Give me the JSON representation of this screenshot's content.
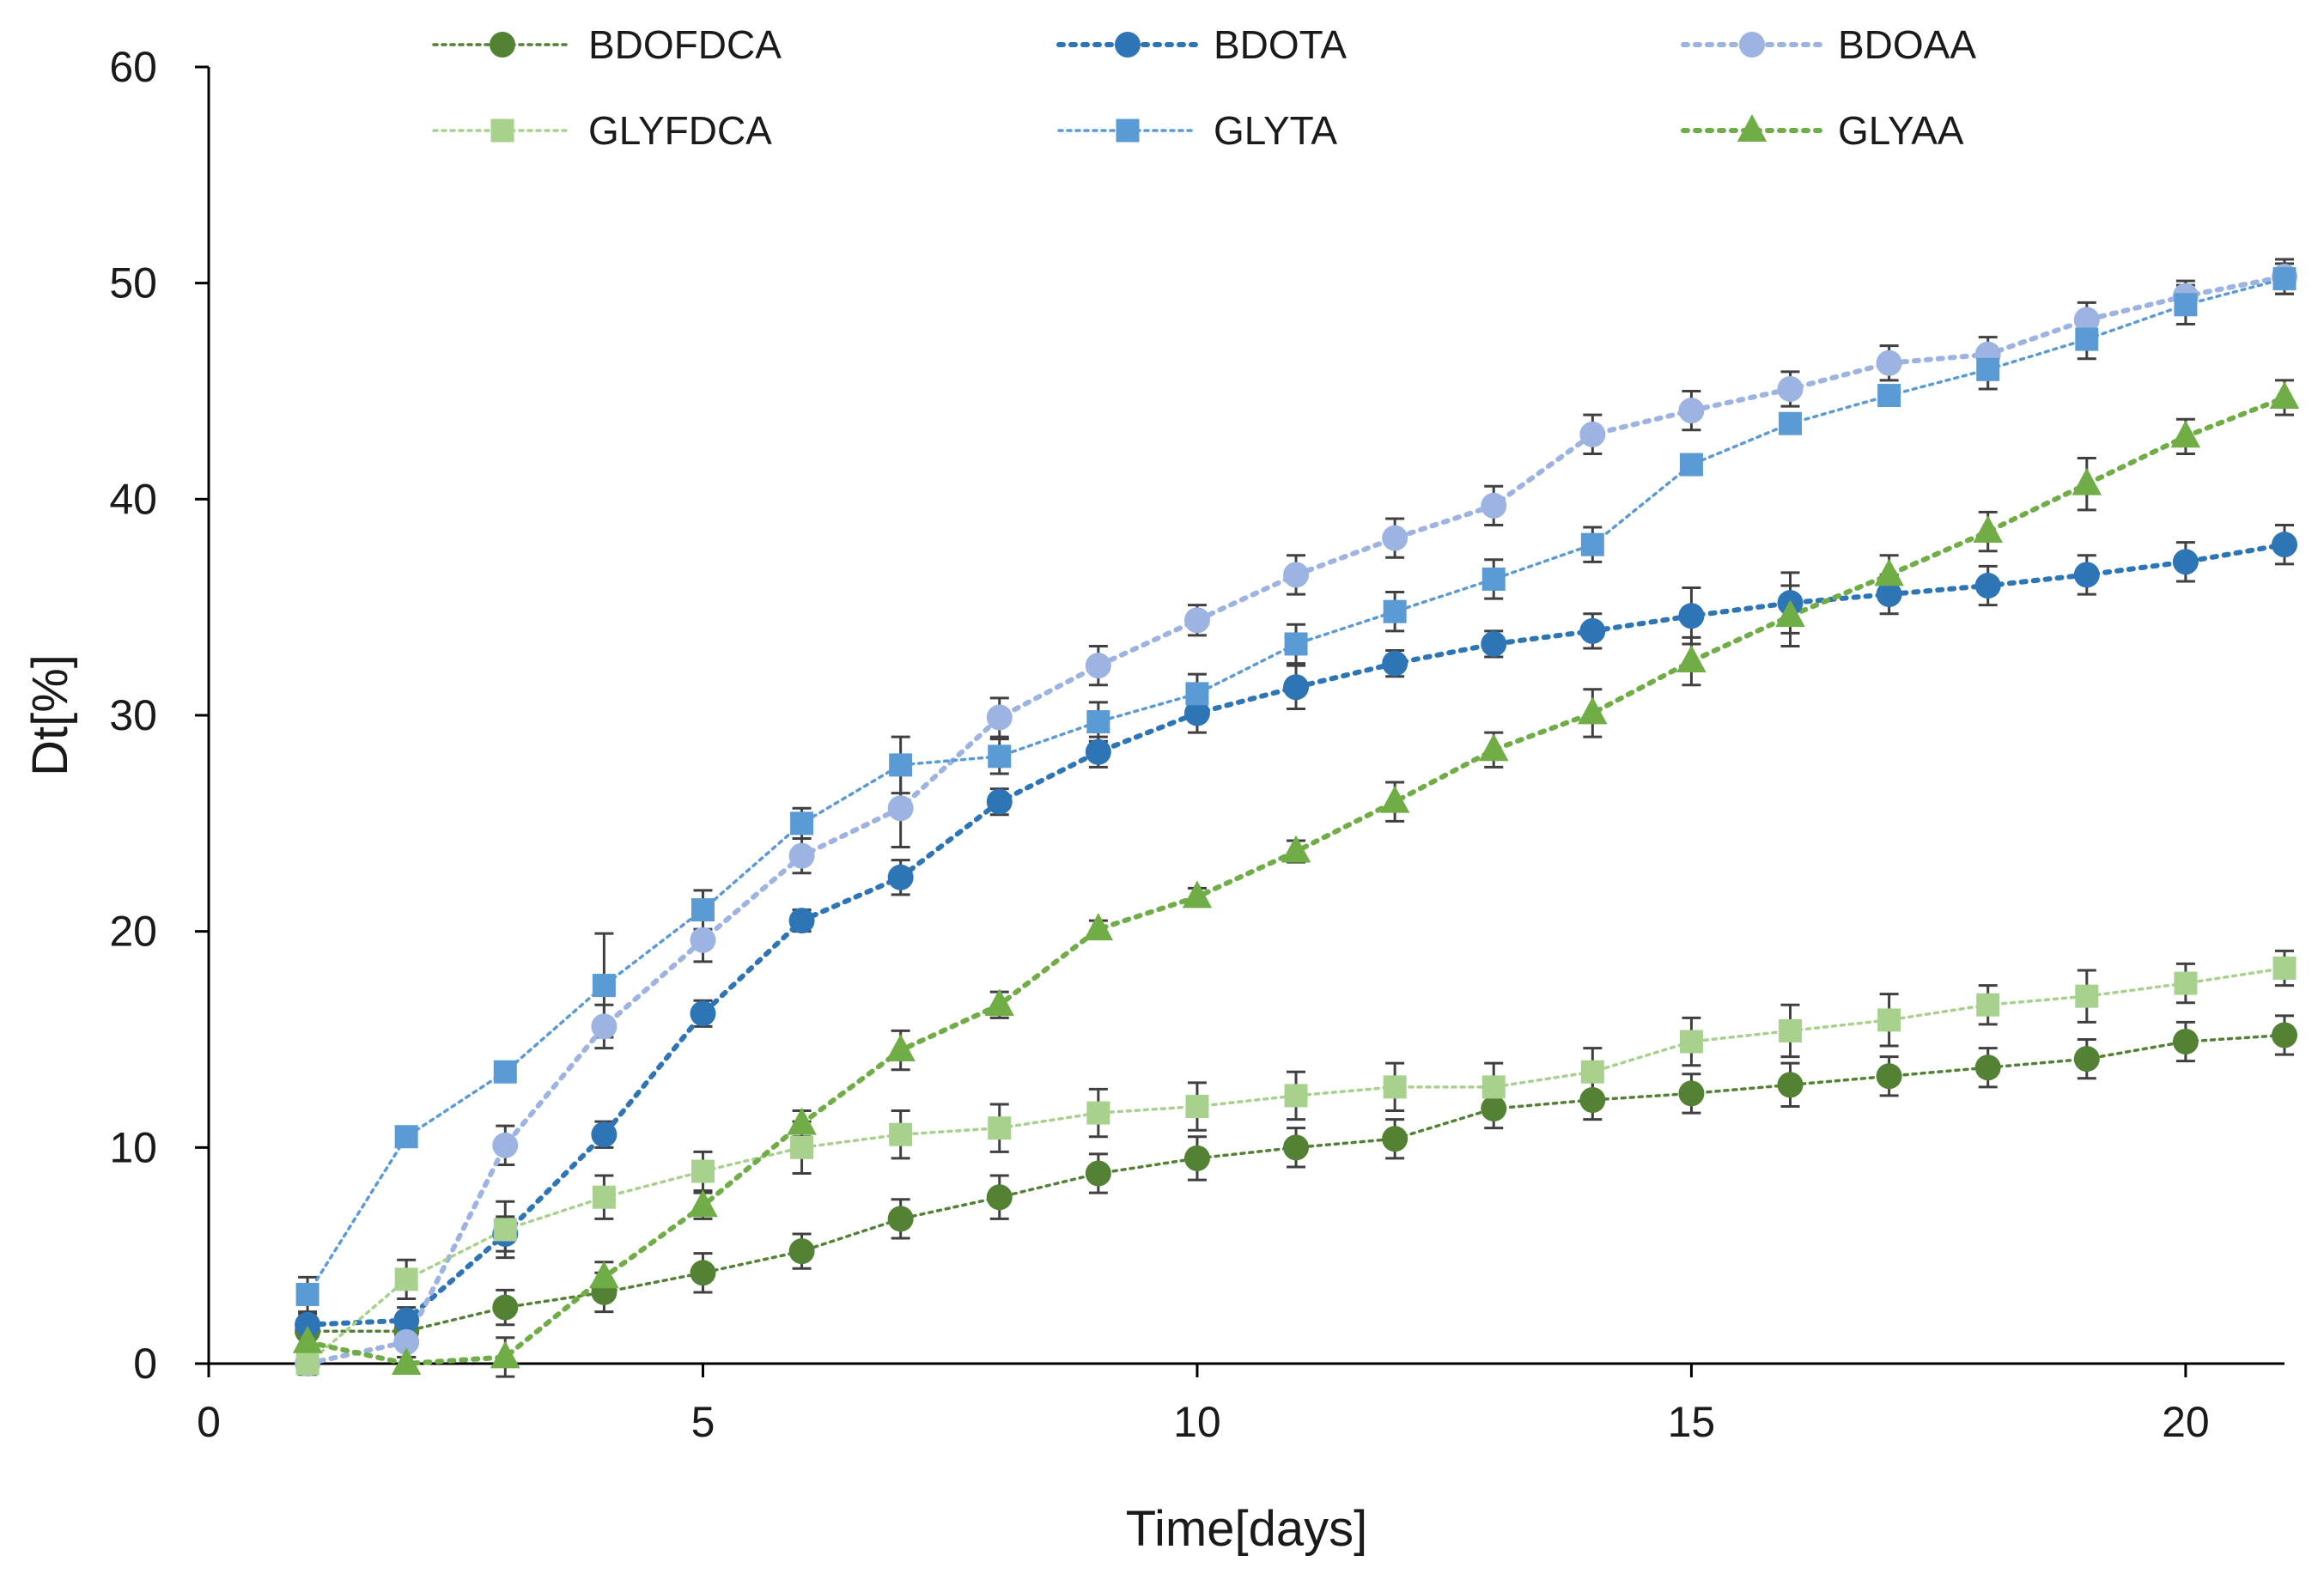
{
  "chart_data": {
    "type": "line",
    "title": "",
    "xlabel": "Time[days]",
    "ylabel": "Dt[%]",
    "xlim": [
      0,
      21
    ],
    "ylim": [
      0,
      60
    ],
    "xticks": [
      0,
      5,
      10,
      15,
      20
    ],
    "yticks": [
      0,
      10,
      20,
      30,
      40,
      50,
      60
    ],
    "grid": false,
    "legend_position": "top",
    "x": [
      1,
      2,
      3,
      4,
      5,
      6,
      7,
      8,
      9,
      10,
      11,
      12,
      13,
      14,
      15,
      16,
      17,
      18,
      19,
      20,
      21
    ],
    "series": [
      {
        "name": "BDOFDCA",
        "marker": "circle",
        "color": "#548235",
        "dash": "fine",
        "values": [
          1.5,
          1.5,
          2.6,
          3.3,
          4.2,
          5.2,
          6.7,
          7.7,
          8.8,
          9.5,
          10.0,
          10.4,
          11.8,
          12.2,
          12.5,
          12.9,
          13.3,
          13.7,
          14.1,
          14.9,
          15.2
        ],
        "errors": [
          0.6,
          0.6,
          0.8,
          0.9,
          0.9,
          0.8,
          0.9,
          1.0,
          0.9,
          1.0,
          0.9,
          0.9,
          0.9,
          0.9,
          0.9,
          1.0,
          0.9,
          0.9,
          0.9,
          0.9,
          0.9
        ]
      },
      {
        "name": "BDOTA",
        "marker": "circle",
        "color": "#2E75B6",
        "dash": "bold",
        "values": [
          1.8,
          2.0,
          6.0,
          10.6,
          16.2,
          20.5,
          22.5,
          26.0,
          28.3,
          30.1,
          31.3,
          32.4,
          33.3,
          33.9,
          34.6,
          35.2,
          35.6,
          36.0,
          36.5,
          37.1,
          37.9
        ],
        "errors": [
          0.5,
          0.6,
          0.8,
          0.6,
          0.6,
          0.5,
          0.8,
          0.6,
          0.7,
          0.9,
          1.0,
          0.6,
          0.6,
          0.8,
          1.3,
          1.4,
          0.9,
          0.9,
          0.9,
          0.9,
          0.9
        ]
      },
      {
        "name": "BDOAA",
        "marker": "circle",
        "color": "#9DB3E2",
        "dash": "bold",
        "values": [
          0.0,
          1.0,
          10.1,
          15.6,
          19.6,
          23.5,
          25.7,
          29.9,
          32.3,
          34.4,
          36.5,
          38.2,
          39.7,
          43.0,
          44.1,
          45.1,
          46.3,
          46.7,
          48.3,
          49.4,
          50.3
        ],
        "errors": [
          0.5,
          0.7,
          0.9,
          1.0,
          1.0,
          0.8,
          1.8,
          0.9,
          0.9,
          0.7,
          0.9,
          0.9,
          0.9,
          0.9,
          0.9,
          0.8,
          0.8,
          0.8,
          0.8,
          0.7,
          0.8
        ]
      },
      {
        "name": "GLYFDCA",
        "marker": "square",
        "color": "#A9D18E",
        "dash": "fine",
        "values": [
          0.0,
          3.9,
          6.2,
          7.7,
          8.9,
          10.0,
          10.6,
          10.9,
          11.6,
          11.9,
          12.4,
          12.8,
          12.8,
          13.5,
          14.9,
          15.4,
          15.9,
          16.6,
          17.0,
          17.6,
          18.3
        ],
        "errors": [
          0.5,
          0.9,
          1.3,
          1.0,
          0.9,
          1.2,
          1.1,
          1.1,
          1.1,
          1.1,
          1.1,
          1.1,
          1.1,
          1.1,
          1.1,
          1.2,
          1.2,
          0.9,
          1.2,
          0.9,
          0.8
        ]
      },
      {
        "name": "GLYTA",
        "marker": "square",
        "color": "#5B9BD5",
        "dash": "fine",
        "values": [
          3.2,
          10.5,
          13.5,
          17.5,
          21.0,
          25.0,
          27.7,
          28.1,
          29.7,
          31.0,
          33.3,
          34.8,
          36.3,
          37.9,
          41.6,
          43.5,
          44.8,
          46.0,
          47.4,
          49.0,
          50.2
        ],
        "errors": [
          0.8,
          0.0,
          0.0,
          2.4,
          0.9,
          0.7,
          1.3,
          0.8,
          0.9,
          0.9,
          0.9,
          0.9,
          0.9,
          0.8,
          0.0,
          0.0,
          0.0,
          0.9,
          0.9,
          0.9,
          0.7
        ]
      },
      {
        "name": "GLYAA",
        "marker": "triangle",
        "color": "#70AD47",
        "dash": "bold",
        "values": [
          1.0,
          0.0,
          0.3,
          4.0,
          7.3,
          11.1,
          14.5,
          16.6,
          20.1,
          21.6,
          23.7,
          26.0,
          28.4,
          30.1,
          32.5,
          34.6,
          36.5,
          38.5,
          40.7,
          42.9,
          44.7
        ],
        "errors": [
          0.3,
          0.3,
          0.9,
          0.7,
          0.6,
          0.6,
          0.9,
          0.6,
          0.4,
          0.4,
          0.5,
          0.9,
          0.8,
          1.1,
          1.1,
          1.4,
          0.9,
          0.9,
          1.2,
          0.8,
          0.8
        ]
      }
    ]
  }
}
